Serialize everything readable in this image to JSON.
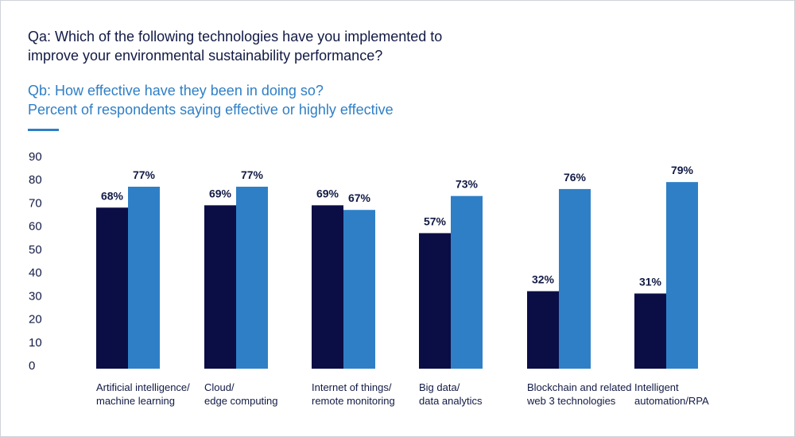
{
  "colors": {
    "series1": "#0b0d45",
    "series2": "#2f7fc6",
    "text": "#121a45",
    "subtitle": "#2f7fc6"
  },
  "chart_data": {
    "type": "bar",
    "title_lines": [
      "Qa: Which of the following technologies have you implemented to",
      "improve your environmental sustainability performance?"
    ],
    "subtitle_lines": [
      "Qb: How effective have they been in doing so?",
      "Percent of respondents saying effective or highly effective"
    ],
    "categories": [
      [
        "Artificial intelligence/",
        "machine learning"
      ],
      [
        "Cloud/",
        "edge computing"
      ],
      [
        "Internet of things/",
        "remote monitoring"
      ],
      [
        "Big data/",
        "data analytics"
      ],
      [
        "Blockchain and related",
        "web 3 technologies"
      ],
      [
        "Intelligent",
        "automation/RPA"
      ]
    ],
    "series": [
      {
        "name": "Qa",
        "values": [
          68,
          69,
          69,
          57,
          32,
          31
        ],
        "labels": [
          "68%",
          "69%",
          "69%",
          "57%",
          "32%",
          "31%"
        ]
      },
      {
        "name": "Qb",
        "values": [
          77,
          77,
          67,
          73,
          76,
          79
        ],
        "labels": [
          "77%",
          "77%",
          "67%",
          "73%",
          "76%",
          "79%"
        ]
      }
    ],
    "yticks": [
      "0",
      "10",
      "20",
      "30",
      "40",
      "50",
      "60",
      "70",
      "80",
      "90"
    ],
    "ylim": [
      0,
      90
    ],
    "grid": false,
    "xlabel": "",
    "ylabel": ""
  }
}
